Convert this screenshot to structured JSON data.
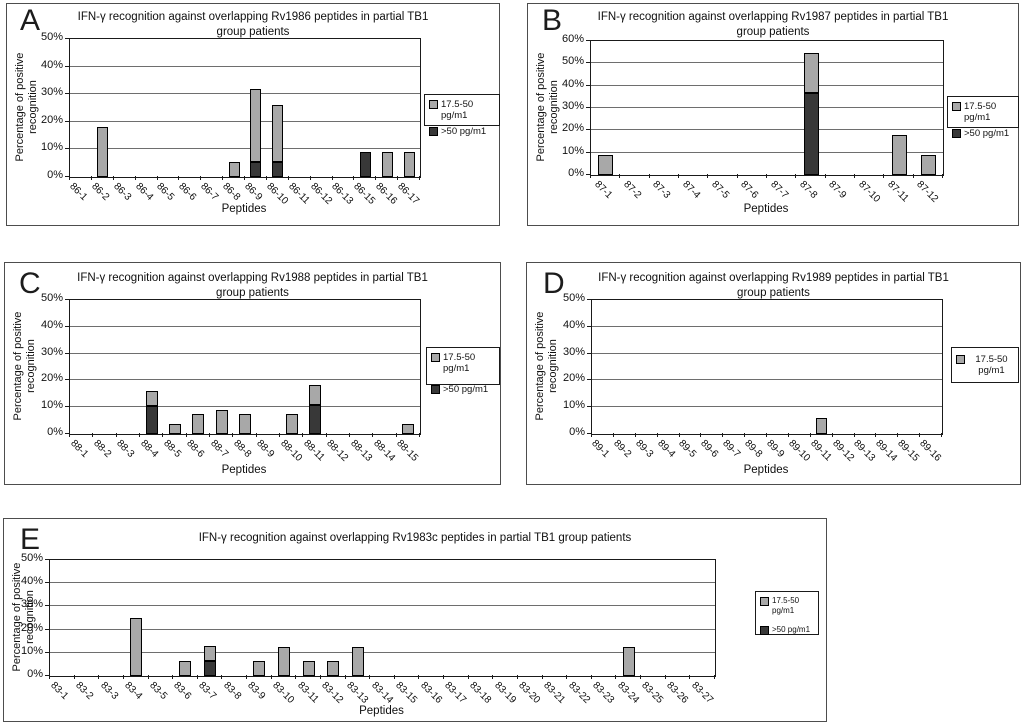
{
  "figure": {
    "background": "#ffffff",
    "description_labels": [
      "A",
      "B",
      "C",
      "D",
      "E"
    ]
  },
  "colors": {
    "bar_light": "#a8a8a8",
    "bar_dark": "#383838",
    "gridline": "#6e6e6e",
    "axis": "#1a1a1a",
    "panel_border": "#4d4d4d"
  },
  "chart_data": [
    {
      "panel_letter": "A",
      "type": "bar",
      "stacked": true,
      "title": "IFN-γ recognition against overlapping Rv1986 peptides in partial TB1\ngroup patients",
      "xlabel": "Peptides",
      "ylabel": "Percentage of positive recognition",
      "ylim": [
        0,
        50
      ],
      "ytick_step": 10,
      "ytick_labels": [
        "0%",
        "10%",
        "20%",
        "30%",
        "40%",
        "50%"
      ],
      "grid": true,
      "legend_position": "right",
      "categories": [
        "86-1",
        "86-2",
        "86-3",
        "86-4",
        "86-5",
        "86-6",
        "86-7",
        "86-8",
        "86-9",
        "86-10",
        "86-11",
        "86-12",
        "86-13",
        "86-15",
        "86-16",
        "86-17"
      ],
      "series": [
        {
          "name": "17.5-50 pg/m1",
          "color": "#a8a8a8",
          "values": [
            0,
            18,
            0,
            0,
            0,
            0,
            0,
            5.5,
            26.5,
            20.5,
            0,
            0,
            0,
            0,
            9,
            9
          ]
        },
        {
          "name": ">50 pg/m1",
          "color": "#383838",
          "values": [
            0,
            0,
            0,
            0,
            0,
            0,
            0,
            0,
            5.5,
            5.5,
            0,
            0,
            0,
            9,
            0,
            0
          ]
        }
      ]
    },
    {
      "panel_letter": "B",
      "type": "bar",
      "stacked": true,
      "title": "IFN-γ recognition against overlapping Rv1987 peptides in partial TB1\ngroup patients",
      "xlabel": "Peptides",
      "ylabel": "Percentage of positive recognition",
      "ylim": [
        0,
        60
      ],
      "ytick_step": 10,
      "ytick_labels": [
        "0%",
        "10%",
        "20%",
        "30%",
        "40%",
        "50%",
        "60%"
      ],
      "grid": true,
      "legend_position": "right",
      "categories": [
        "87-1",
        "87-2",
        "87-3",
        "87-4",
        "87-5",
        "87-6",
        "87-7",
        "87-8",
        "87-9",
        "87-10",
        "87-11",
        "87-12"
      ],
      "series": [
        {
          "name": "17.5-50 pg/m1",
          "color": "#a8a8a8",
          "values": [
            9,
            0,
            0,
            0,
            0,
            0,
            0,
            18,
            0,
            0,
            18,
            9
          ]
        },
        {
          "name": ">50 pg/m1",
          "color": "#383838",
          "values": [
            0,
            0,
            0,
            0,
            0,
            0,
            0,
            36.5,
            0,
            0,
            0,
            0
          ]
        }
      ]
    },
    {
      "panel_letter": "C",
      "type": "bar",
      "stacked": true,
      "title": "IFN-γ recognition against overlapping Rv1988 peptides in partial TB1\ngroup patients",
      "xlabel": "Peptides",
      "ylabel": "Percentage of positive recognition",
      "ylim": [
        0,
        50
      ],
      "ytick_step": 10,
      "ytick_labels": [
        "0%",
        "10%",
        "20%",
        "30%",
        "40%",
        "50%"
      ],
      "grid": true,
      "legend_position": "right",
      "categories": [
        "88-1",
        "88-2",
        "88-3",
        "88-4",
        "88-5",
        "88-6",
        "88-7",
        "88-8",
        "88-9",
        "88-10",
        "88-11",
        "88-12",
        "88-13",
        "88-14",
        "88-15"
      ],
      "series": [
        {
          "name": "17.5-50 pg/m1",
          "color": "#a8a8a8",
          "values": [
            0,
            0,
            0,
            5.5,
            3.7,
            7.4,
            9,
            7.4,
            0,
            7.4,
            7.5,
            0,
            0,
            0,
            3.7
          ]
        },
        {
          "name": ">50 pg/m1",
          "color": "#383838",
          "values": [
            0,
            0,
            0,
            10.5,
            0,
            0,
            0,
            0,
            0,
            0,
            11,
            0,
            0,
            0,
            0
          ]
        }
      ]
    },
    {
      "panel_letter": "D",
      "type": "bar",
      "stacked": false,
      "title": "IFN-γ recognition against overlapping Rv1989 peptides in partial TB1\ngroup patients",
      "xlabel": "Peptides",
      "ylabel": "Percentage of positive recognition",
      "ylim": [
        0,
        50
      ],
      "ytick_step": 10,
      "ytick_labels": [
        "0%",
        "10%",
        "20%",
        "30%",
        "40%",
        "50%"
      ],
      "grid": true,
      "legend_position": "right",
      "categories": [
        "89-1",
        "89-2",
        "89-3",
        "89-4",
        "89-5",
        "89-6",
        "89-7",
        "89-8",
        "89-9",
        "89-10",
        "89-11",
        "89-12",
        "89-13",
        "89-14",
        "89-15",
        "89-16"
      ],
      "series": [
        {
          "name": "17.5-50 pg/m1",
          "color": "#a8a8a8",
          "values": [
            0,
            0,
            0,
            0,
            0,
            0,
            0,
            0,
            0,
            0,
            6,
            0,
            0,
            0,
            0,
            0
          ]
        }
      ]
    },
    {
      "panel_letter": "E",
      "type": "bar",
      "stacked": true,
      "title": "IFN-γ recognition against overlapping Rv1983c peptides in partial TB1 group patients",
      "xlabel": "Peptides",
      "ylabel": "Percentage of positive recognition",
      "ylim": [
        0,
        50
      ],
      "ytick_step": 10,
      "ytick_labels": [
        "0%",
        "10%",
        "20%",
        "30%",
        "40%",
        "50%"
      ],
      "grid": true,
      "legend_position": "right",
      "categories": [
        "83-1",
        "83-2",
        "83-3",
        "83-4",
        "83-5",
        "83-6",
        "83-7",
        "83-8",
        "83-9",
        "83-10",
        "83-11",
        "83-12",
        "83-13",
        "83-14",
        "83-15",
        "83-16",
        "83-17",
        "83-18",
        "83-19",
        "83-20",
        "83-21",
        "83-22",
        "83-23",
        "83-24",
        "83-25",
        "83-26",
        "83-27"
      ],
      "series": [
        {
          "name": "17.5-50 pg/m1",
          "color": "#a8a8a8",
          "values": [
            0,
            0,
            0,
            25,
            0,
            6.25,
            6.25,
            0,
            6.25,
            12.5,
            6.25,
            6.25,
            12.5,
            0,
            0,
            0,
            0,
            0,
            0,
            0,
            0,
            0,
            0,
            12.5,
            0,
            0,
            0
          ]
        },
        {
          "name": ">50 pg/m1",
          "color": "#383838",
          "values": [
            0,
            0,
            0,
            0,
            0,
            0,
            6.25,
            0,
            0,
            0,
            0,
            0,
            0,
            0,
            0,
            0,
            0,
            0,
            0,
            0,
            0,
            0,
            0,
            0,
            0,
            0,
            0
          ]
        }
      ]
    }
  ]
}
